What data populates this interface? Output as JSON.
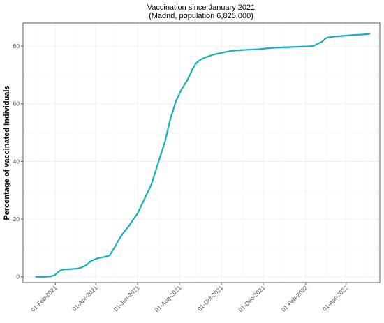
{
  "chart_data": {
    "type": "line",
    "title": "Vaccination since January 2021",
    "subtitle": "(Madrid, population 6,825,000)",
    "xlabel": "",
    "ylabel": "Percentage of vaccinated Individuals",
    "x_is_date": true,
    "xlim": [
      "2020-12-16",
      "2022-05-20"
    ],
    "ylim": [
      -2,
      88
    ],
    "grid": true,
    "legend": "none",
    "line_color": "#13AFBF",
    "x_ticks": [
      {
        "date": "2021-02-01",
        "label": "01-Feb-2021"
      },
      {
        "date": "2021-04-01",
        "label": "01-Apr-2021"
      },
      {
        "date": "2021-06-01",
        "label": "01-Jun-2021"
      },
      {
        "date": "2021-08-01",
        "label": "01-Aug-2021"
      },
      {
        "date": "2021-10-01",
        "label": "01-Oct-2021"
      },
      {
        "date": "2021-12-01",
        "label": "01-Dec-2021"
      },
      {
        "date": "2022-02-01",
        "label": "01-Feb-2022"
      },
      {
        "date": "2022-04-01",
        "label": "01-Apr-2022"
      }
    ],
    "y_ticks": [
      0,
      20,
      40,
      60,
      80
    ],
    "series": [
      {
        "x": [
          "2021-01-04",
          "2021-01-10",
          "2021-01-17",
          "2021-01-24",
          "2021-01-31",
          "2021-02-07",
          "2021-02-12",
          "2021-02-18",
          "2021-02-25",
          "2021-03-04",
          "2021-03-11",
          "2021-03-18",
          "2021-03-25",
          "2021-04-01",
          "2021-04-07",
          "2021-04-14",
          "2021-04-21",
          "2021-04-28",
          "2021-05-05",
          "2021-05-12",
          "2021-05-19",
          "2021-05-26",
          "2021-06-01",
          "2021-06-05",
          "2021-06-09",
          "2021-06-13",
          "2021-06-17",
          "2021-06-21",
          "2021-06-25",
          "2021-06-29",
          "2021-07-03",
          "2021-07-07",
          "2021-07-11",
          "2021-07-15",
          "2021-07-19",
          "2021-07-23",
          "2021-07-27",
          "2021-07-31",
          "2021-08-04",
          "2021-08-08",
          "2021-08-12",
          "2021-08-16",
          "2021-08-20",
          "2021-08-25",
          "2021-08-30",
          "2021-09-04",
          "2021-09-09",
          "2021-09-14",
          "2021-09-19",
          "2021-09-24",
          "2021-10-01",
          "2021-10-08",
          "2021-10-15",
          "2021-10-22",
          "2021-10-29",
          "2021-11-05",
          "2021-11-15",
          "2021-11-25",
          "2021-12-05",
          "2021-12-15",
          "2021-12-25",
          "2022-01-01",
          "2022-01-05",
          "2022-01-15",
          "2022-01-25",
          "2022-02-05",
          "2022-02-12",
          "2022-02-15",
          "2022-02-17",
          "2022-02-20",
          "2022-02-25",
          "2022-03-01",
          "2022-03-05",
          "2022-03-15",
          "2022-03-25",
          "2022-04-05",
          "2022-04-15",
          "2022-04-25",
          "2022-05-05"
        ],
        "y": [
          0,
          0,
          0,
          0.1,
          0.5,
          2.0,
          2.5,
          2.6,
          2.7,
          2.8,
          3.2,
          4.0,
          5.5,
          6.2,
          6.6,
          6.9,
          7.4,
          10,
          13,
          15.5,
          17.5,
          20,
          22,
          24,
          26,
          28,
          30,
          32,
          35,
          38,
          41,
          44,
          47,
          51,
          55,
          58,
          61,
          63,
          65,
          66.5,
          68,
          70,
          72,
          74,
          75,
          75.7,
          76.2,
          76.6,
          77,
          77.3,
          77.6,
          78,
          78.3,
          78.5,
          78.6,
          78.7,
          78.8,
          78.9,
          79.2,
          79.4,
          79.5,
          79.6,
          79.6,
          79.7,
          79.8,
          79.9,
          80.0,
          80.4,
          80.6,
          81.0,
          81.5,
          82.5,
          83.0,
          83.3,
          83.5,
          83.7,
          83.9,
          84.0,
          84.2
        ]
      }
    ]
  }
}
